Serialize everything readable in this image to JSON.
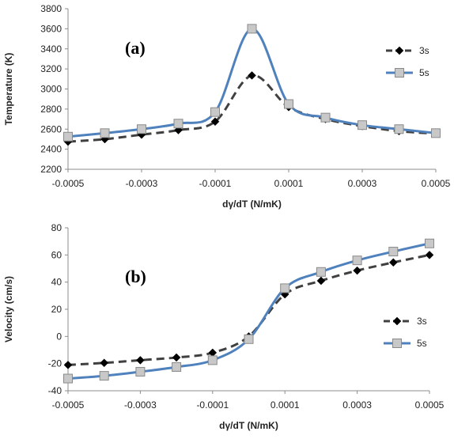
{
  "colors": {
    "series_3s": "#404040",
    "series_5s": "#4f81bd",
    "marker_5s_fill": "#c8c8c8",
    "marker_5s_stroke": "#8a8a8a",
    "axis": "#8c8c8c"
  },
  "chart_data": [
    {
      "type": "line",
      "panel_label": "(a)",
      "xlabel": "dγ/dT (N/mK)",
      "ylabel": "Temperature (K)",
      "xlim": [
        -0.0005,
        0.0005
      ],
      "ylim": [
        2200,
        3800
      ],
      "x_ticks": [
        -0.0005,
        -0.0003,
        -0.0001,
        0.0001,
        0.0003,
        0.0005
      ],
      "x_tick_labels": [
        "-0.0005",
        "-0.0003",
        "-0.0001",
        "0.0001",
        "0.0003",
        "0.0005"
      ],
      "y_ticks": [
        2200,
        2400,
        2600,
        2800,
        3000,
        3200,
        3400,
        3600,
        3800
      ],
      "y_tick_labels": [
        "2200",
        "2400",
        "2600",
        "2800",
        "3000",
        "3200",
        "3400",
        "3600",
        "3800"
      ],
      "grid": false,
      "legend_position": "right",
      "series": [
        {
          "name": "3s",
          "style": "dashed",
          "marker": "diamond",
          "x": [
            -0.0005,
            -0.0004,
            -0.0003,
            -0.0002,
            -0.0001,
            0.0,
            0.0001,
            0.0002,
            0.0003,
            0.0004,
            0.0005
          ],
          "y": [
            2475,
            2500,
            2545,
            2590,
            2675,
            3135,
            2820,
            2700,
            2630,
            2580,
            2555
          ]
        },
        {
          "name": "5s",
          "style": "solid",
          "marker": "square",
          "x": [
            -0.0005,
            -0.0004,
            -0.0003,
            -0.0002,
            -0.0001,
            0.0,
            0.0001,
            0.0002,
            0.0003,
            0.0004,
            0.0005
          ],
          "y": [
            2525,
            2560,
            2600,
            2655,
            2770,
            3600,
            2850,
            2715,
            2640,
            2600,
            2560
          ]
        }
      ]
    },
    {
      "type": "line",
      "panel_label": "(b)",
      "xlabel": "dγ/dT (N/mK)",
      "ylabel": "Velocity (cm/s)",
      "xlim": [
        -0.0005,
        0.0005
      ],
      "ylim": [
        -40,
        80
      ],
      "x_ticks": [
        -0.0005,
        -0.0003,
        -0.0001,
        0.0001,
        0.0003,
        0.0005
      ],
      "x_tick_labels": [
        "-0.0005",
        "-0.0003",
        "-0.0001",
        "0.0001",
        "0.0003",
        "0.0005"
      ],
      "y_ticks": [
        -40,
        -20,
        0,
        20,
        40,
        60,
        80
      ],
      "y_tick_labels": [
        "-40",
        "-20",
        "0",
        "20",
        "40",
        "60",
        "80"
      ],
      "grid": false,
      "legend_position": "right",
      "series": [
        {
          "name": "3s",
          "style": "dashed",
          "marker": "diamond",
          "x": [
            -0.0005,
            -0.0004,
            -0.0003,
            -0.0002,
            -0.0001,
            0.0,
            0.0001,
            0.0002,
            0.0003,
            0.0004,
            0.0005
          ],
          "y": [
            -21,
            -19.5,
            -17.5,
            -15.5,
            -12,
            0,
            31,
            41,
            48.5,
            54.5,
            60
          ]
        },
        {
          "name": "5s",
          "style": "solid",
          "marker": "square",
          "x": [
            -0.0005,
            -0.0004,
            -0.0003,
            -0.0002,
            -0.0001,
            0.0,
            0.0001,
            0.0002,
            0.0003,
            0.0004,
            0.0005
          ],
          "y": [
            -31,
            -29,
            -26,
            -22.5,
            -17.5,
            -2,
            35.5,
            47.5,
            56,
            62.5,
            68.5
          ]
        }
      ]
    }
  ]
}
